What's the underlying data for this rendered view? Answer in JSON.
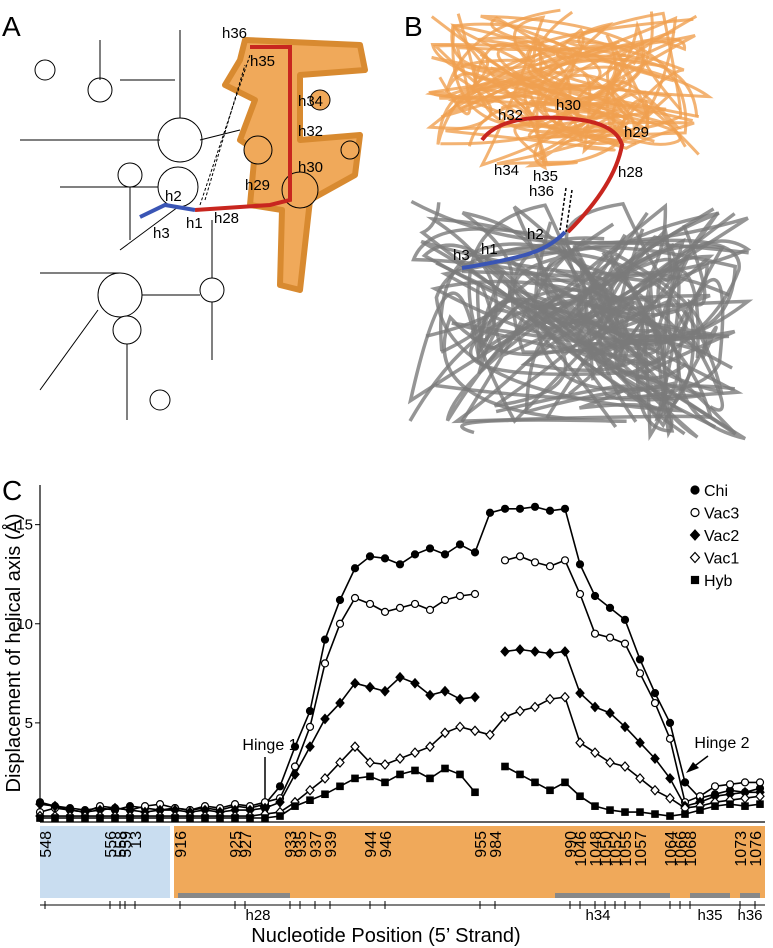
{
  "panel_labels": [
    "A",
    "B",
    "C"
  ],
  "panel_a": {
    "labels": [
      "h36",
      "h35",
      "h34",
      "h32",
      "h30",
      "h29",
      "h28",
      "h1",
      "h2",
      "h3"
    ]
  },
  "panel_b": {
    "labels": [
      "h32",
      "h30",
      "h29",
      "h28",
      "h34",
      "h35",
      "h36",
      "h2",
      "h1",
      "h3"
    ]
  },
  "chart_data": {
    "type": "line",
    "ylabel": "Displacement of helical axis (Å)",
    "xlabel": "Nucleotide Position (5’ Strand)",
    "annotations": [
      "Hinge 1",
      "Hinge 2"
    ],
    "helix_labels": [
      "h28",
      "h34",
      "h35",
      "h36"
    ],
    "legend": "upper right",
    "xlim": [
      0,
      145
    ],
    "ylim": [
      0,
      17
    ],
    "yticks": [
      5,
      10,
      15
    ],
    "xticks": [
      {
        "value": 1,
        "label": "548"
      },
      {
        "value": 14,
        "label": "556"
      },
      {
        "value": 16,
        "label": "558"
      },
      {
        "value": 17,
        "label": "559"
      },
      {
        "value": 19,
        "label": "13"
      },
      {
        "value": 28,
        "label": "916"
      },
      {
        "value": 39,
        "label": "925"
      },
      {
        "value": 41,
        "label": "927"
      },
      {
        "value": 50,
        "label": "933"
      },
      {
        "value": 52,
        "label": "935"
      },
      {
        "value": 55,
        "label": "937"
      },
      {
        "value": 58,
        "label": "939"
      },
      {
        "value": 66,
        "label": "944"
      },
      {
        "value": 69,
        "label": "946"
      },
      {
        "value": 88,
        "label": "955"
      },
      {
        "value": 91,
        "label": "984"
      },
      {
        "value": 106,
        "label": "990"
      },
      {
        "value": 108,
        "label": "1046"
      },
      {
        "value": 111,
        "label": "1048"
      },
      {
        "value": 113,
        "label": "1050"
      },
      {
        "value": 115,
        "label": "1052"
      },
      {
        "value": 117,
        "label": "1055"
      },
      {
        "value": 120,
        "label": "1057"
      },
      {
        "value": 126,
        "label": "1064"
      },
      {
        "value": 128,
        "label": "1066"
      },
      {
        "value": 130,
        "label": "1068"
      },
      {
        "value": 140,
        "label": "1073"
      },
      {
        "value": 143,
        "label": "1076"
      }
    ],
    "x": [
      0,
      3,
      6,
      9,
      12,
      15,
      18,
      21,
      24,
      27,
      30,
      33,
      36,
      39,
      42,
      45,
      48,
      51,
      54,
      57,
      60,
      63,
      66,
      69,
      72,
      75,
      78,
      81,
      84,
      87,
      90,
      93,
      96,
      99,
      102,
      105,
      108,
      111,
      114,
      117,
      120,
      123,
      126,
      129,
      132,
      135,
      138,
      141,
      144
    ],
    "series": [
      {
        "name": "Chi",
        "color": "#000000",
        "marker": "circle",
        "filled": true,
        "values": [
          1.0,
          0.8,
          0.7,
          0.6,
          0.7,
          0.6,
          0.8,
          0.7,
          0.6,
          0.7,
          0.6,
          0.7,
          0.6,
          0.8,
          0.7,
          0.9,
          1.8,
          3.8,
          5.6,
          9.2,
          11.2,
          12.8,
          13.4,
          13.3,
          13.0,
          13.5,
          13.8,
          13.5,
          14.0,
          13.6,
          15.6,
          15.8,
          15.8,
          15.9,
          15.7,
          15.8,
          13.0,
          11.4,
          10.8,
          10.2,
          8.2,
          6.5,
          5.0,
          2.0,
          1.2,
          1.4,
          1.6,
          1.5,
          1.7
        ]
      },
      {
        "name": "Vac3",
        "color": "#000000",
        "marker": "circle",
        "filled": false,
        "values": [
          0.5,
          0.7,
          0.6,
          0.5,
          0.8,
          0.7,
          0.6,
          0.8,
          0.9,
          0.7,
          0.6,
          0.8,
          0.7,
          0.9,
          0.8,
          1.0,
          1.2,
          2.8,
          4.8,
          8.0,
          10.0,
          11.3,
          11.0,
          10.6,
          10.8,
          11.0,
          10.7,
          11.2,
          11.4,
          11.5,
          null,
          13.2,
          13.4,
          13.1,
          12.9,
          13.2,
          11.5,
          9.5,
          9.3,
          9.0,
          7.5,
          6.0,
          4.2,
          1.0,
          1.3,
          1.8,
          1.9,
          2.0,
          2.0
        ]
      },
      {
        "name": "Vac2",
        "color": "#000000",
        "marker": "diamond",
        "filled": true,
        "values": [
          0.9,
          0.8,
          0.6,
          0.5,
          0.6,
          0.7,
          0.6,
          0.5,
          0.6,
          0.6,
          0.5,
          0.6,
          0.5,
          0.6,
          0.6,
          0.7,
          1.0,
          2.4,
          3.8,
          5.2,
          6.0,
          7.0,
          6.8,
          6.6,
          7.3,
          7.0,
          6.4,
          6.6,
          6.2,
          6.3,
          null,
          8.6,
          8.7,
          8.6,
          8.5,
          8.6,
          6.5,
          5.8,
          5.5,
          4.8,
          4.0,
          3.2,
          2.2,
          0.8,
          1.0,
          1.3,
          1.4,
          1.5,
          1.5
        ]
      },
      {
        "name": "Vac1",
        "color": "#000000",
        "marker": "diamond",
        "filled": false,
        "values": [
          0.3,
          0.3,
          0.3,
          0.3,
          0.3,
          0.3,
          0.3,
          0.3,
          0.3,
          0.3,
          0.3,
          0.3,
          0.3,
          0.3,
          0.3,
          0.4,
          0.5,
          1.0,
          1.6,
          2.2,
          3.0,
          3.8,
          3.0,
          2.9,
          3.2,
          3.5,
          3.8,
          4.5,
          4.8,
          4.6,
          4.4,
          5.3,
          5.6,
          5.8,
          6.2,
          6.3,
          4.0,
          3.5,
          3.0,
          2.8,
          2.2,
          1.6,
          1.2,
          0.7,
          0.8,
          1.0,
          1.1,
          1.2,
          1.3
        ]
      },
      {
        "name": "Hyb",
        "color": "#000000",
        "marker": "square",
        "filled": true,
        "values": [
          0.2,
          0.2,
          0.2,
          0.2,
          0.2,
          0.2,
          0.2,
          0.2,
          0.2,
          0.2,
          0.2,
          0.2,
          0.2,
          0.2,
          0.2,
          0.2,
          0.3,
          0.8,
          1.1,
          1.4,
          1.8,
          2.2,
          2.3,
          2.0,
          2.4,
          2.6,
          2.2,
          2.7,
          2.4,
          1.5,
          null,
          2.8,
          2.4,
          2.0,
          1.6,
          2.0,
          1.3,
          0.8,
          0.6,
          0.5,
          0.5,
          0.4,
          0.3,
          0.4,
          0.6,
          0.8,
          0.9,
          0.8,
          0.9
        ]
      }
    ]
  }
}
